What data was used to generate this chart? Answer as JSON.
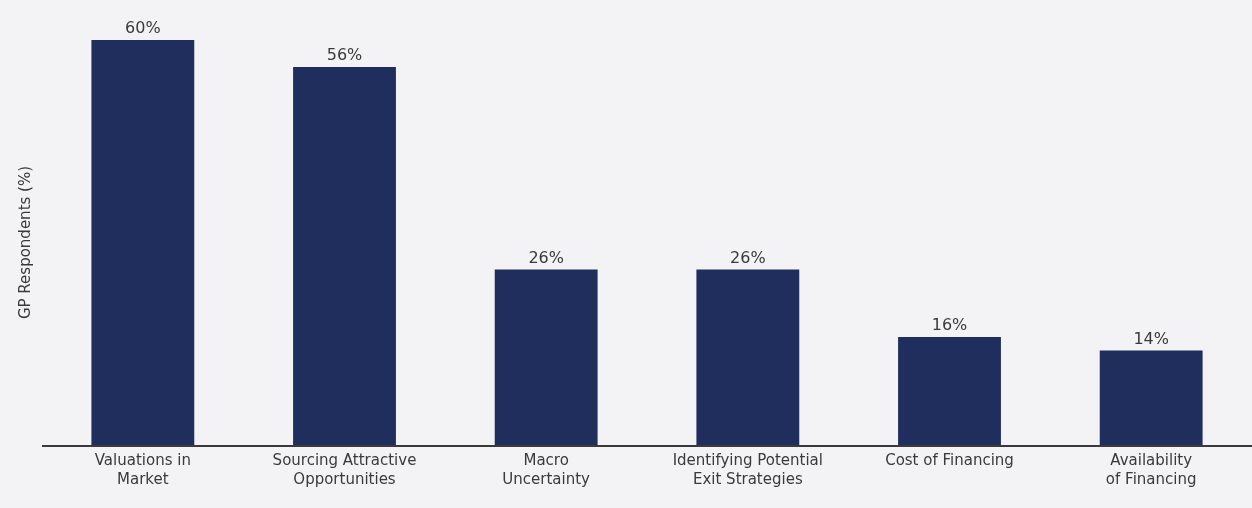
{
  "chart_data": {
    "type": "bar",
    "ylabel": "GP Respondents (%)",
    "categories": [
      "Valuations in\nMarket",
      "Sourcing Attractive\nOpportunities",
      "Macro\nUncertainty",
      "Identifying Potential\nExit Strategies",
      "Cost of Financing",
      "Availability\nof Financing"
    ],
    "values": [
      60,
      56,
      26,
      26,
      16,
      14
    ],
    "value_labels": [
      "60%",
      "56%",
      "26%",
      "26%",
      "16%",
      "14%"
    ],
    "color": "#1f2e5c",
    "ylim": [
      0,
      60
    ],
    "tick_labels": "x"
  }
}
